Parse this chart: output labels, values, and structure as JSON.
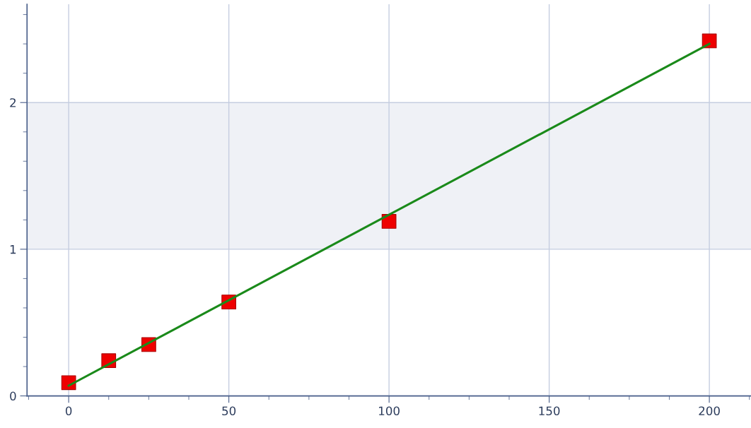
{
  "chart_data": {
    "type": "scatter",
    "x": [
      0,
      12.5,
      25,
      50,
      100,
      200
    ],
    "series": [
      {
        "color": "#ee0000",
        "values": [
          0.09,
          0.24,
          0.35,
          0.64,
          1.19,
          2.42
        ],
        "marker": "square"
      },
      {
        "type": "line",
        "color": "#1a8a1a",
        "x": [
          0,
          200
        ],
        "values": [
          0.07,
          2.4
        ],
        "marker": "none",
        "line_style": "solid"
      }
    ],
    "xlim": [
      -13,
      213
    ],
    "ylim": [
      0,
      2.67
    ],
    "xticks": [
      0,
      50,
      100,
      150,
      200
    ],
    "yticks": [
      0,
      1,
      2
    ],
    "bands": [
      {
        "axis": "y",
        "from": 1,
        "to": 2,
        "color": "#eff1f6"
      }
    ],
    "grid": true,
    "legend": false
  }
}
